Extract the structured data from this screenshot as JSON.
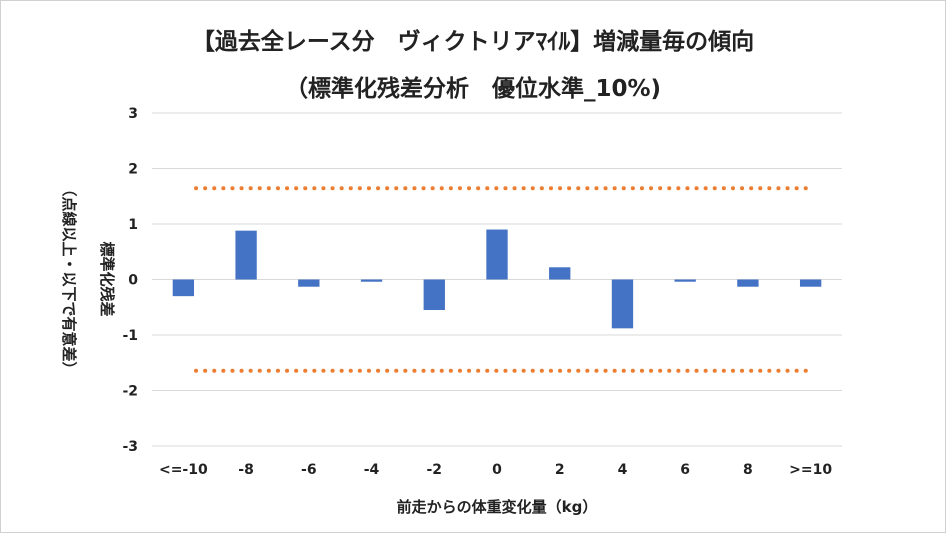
{
  "chart_data": {
    "type": "bar",
    "title": "【過去全レース分　ヴィクトリアﾏｲﾙ】増減量毎の傾向",
    "subtitle": "（標準化残差分析　優位水準_10%)",
    "xlabel": "前走からの体重変化量（kg）",
    "ylabel": "標準化残差",
    "ylabel_note": "（点線以上・以下で有意差）",
    "categories": [
      "<=-10",
      "-8",
      "-6",
      "-4",
      "-2",
      "0",
      "2",
      "4",
      "6",
      "8",
      ">=10"
    ],
    "values": [
      -0.3,
      0.88,
      -0.13,
      -0.04,
      -0.55,
      0.9,
      0.22,
      -0.88,
      -0.04,
      -0.13,
      -0.13
    ],
    "ylim": [
      -3,
      3
    ],
    "yticks": [
      "3",
      "2",
      "1",
      "0",
      "-1",
      "-2",
      "-3"
    ],
    "threshold_upper": 1.645,
    "threshold_lower": -1.645,
    "grid": true,
    "legend": "none",
    "colors": {
      "bar": "#4472c4",
      "threshold": "#ed7d31",
      "grid": "#d9d9d9"
    }
  }
}
